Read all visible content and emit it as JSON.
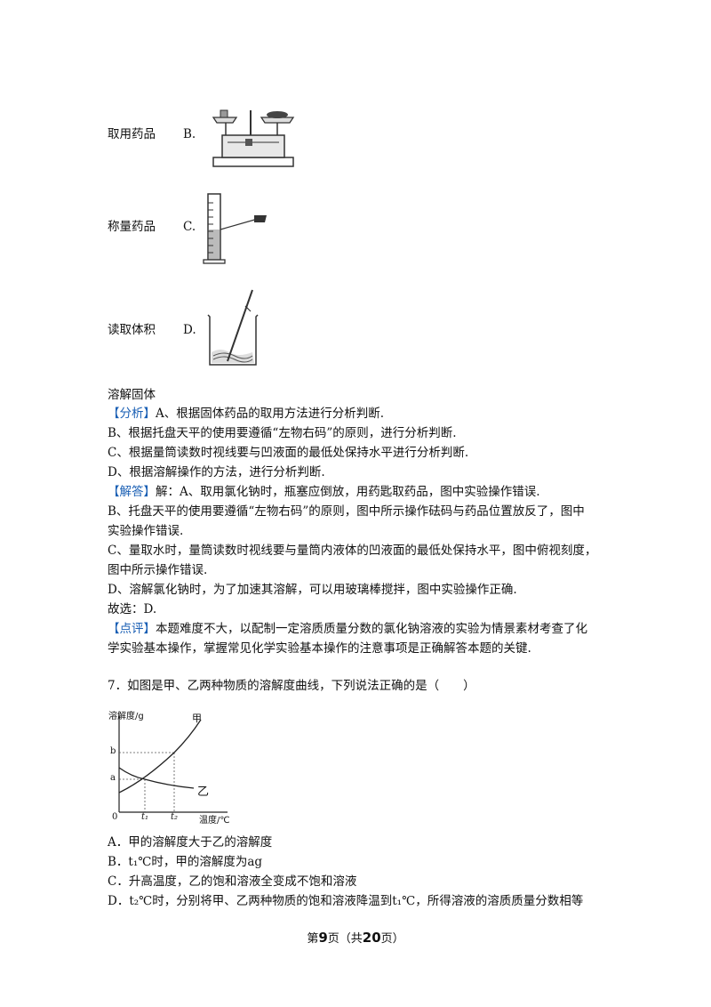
{
  "options_block": {
    "B": {
      "caption": "取用药品",
      "letter": "B."
    },
    "C": {
      "caption": "称量药品",
      "letter": "C."
    },
    "D": {
      "caption": "读取体积",
      "letter": "D."
    },
    "last_caption": "溶解固体"
  },
  "analysis": {
    "tag": "【分析】",
    "lines": [
      "A、根据固体药品的取用方法进行分析判断.",
      "B、根据托盘天平的使用要遵循“左物右码”的原则，进行分析判断.",
      "C、根据量筒读数时视线要与凹液面的最低处保持水平进行分析判断.",
      "D、根据溶解操作的方法，进行分析判断."
    ]
  },
  "answer": {
    "tag": "【解答】",
    "lines": [
      "解：A、取用氯化钠时，瓶塞应倒放，用药匙取药品，图中实验操作错误.",
      "B、托盘天平的使用要遵循“左物右码”的原则，图中所示操作砝码与药品位置放反了，图中",
      "实验操作错误.",
      "C、量取水时，量筒读数时视线要与量筒内液体的凹液面的最低处保持水平，图中俯视刻度，",
      "图中所示操作错误.",
      "D、溶解氯化钠时，为了加速其溶解，可以用玻璃棒搅拌，图中实验操作正确.",
      "故选：D."
    ]
  },
  "comment": {
    "tag": "【点评】",
    "lines": [
      "本题难度不大，以配制一定溶质质量分数的氯化钠溶液的实验为情景素材考查了化",
      "学实验基本操作，掌握常见化学实验基本操作的注意事项是正确解答本题的关键."
    ]
  },
  "question7": {
    "stem": "7．如图是甲、乙两种物质的溶解度曲线，下列说法正确的是（　　）",
    "graph": {
      "ylabel": "溶解度/g",
      "xlabel": "温度/℃",
      "origin": "0",
      "b_label": "b",
      "a_label": "a",
      "t1_label": "t₁",
      "t2_label": "t₂",
      "series_jia": "甲",
      "series_yi": "乙"
    },
    "options": [
      "A．甲的溶解度大于乙的溶解度",
      "B．t₁℃时，甲的溶解度为ag",
      "C．升高温度，乙的饱和溶液全变成不饱和溶液",
      "D．t₂℃时，分别将甲、乙两种物质的饱和溶液降温到t₁℃，所得溶液的溶质质量分数相等"
    ]
  },
  "footer": {
    "pre": "第",
    "page": "9",
    "mid": "页（共",
    "total": "20",
    "post": "页）"
  }
}
